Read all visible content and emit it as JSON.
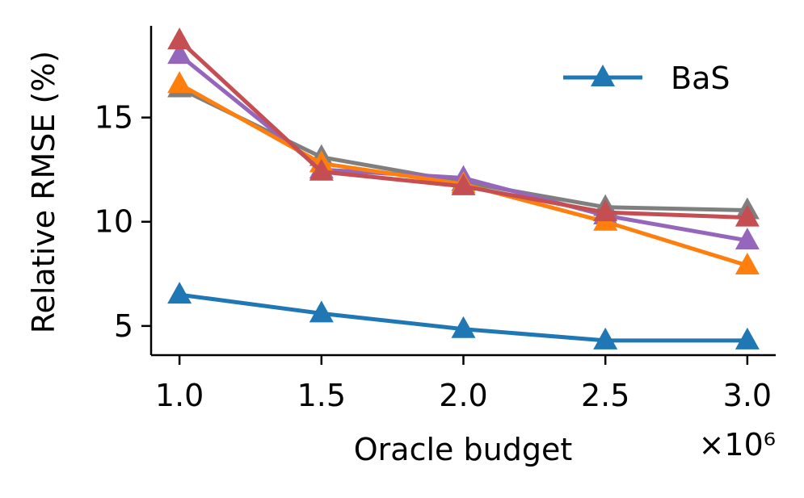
{
  "chart_data": {
    "type": "line",
    "title": "",
    "xlabel": "Oracle budget",
    "ylabel": "Relative RMSE (%)",
    "x_offset_label": "×10⁶",
    "x": [
      1.0,
      1.5,
      2.0,
      2.5,
      3.0
    ],
    "xticks": [
      1.0,
      1.5,
      2.0,
      2.5,
      3.0
    ],
    "xtick_labels": [
      "1.0",
      "1.5",
      "2.0",
      "2.5",
      "3.0"
    ],
    "yticks": [
      5,
      10,
      15
    ],
    "ytick_labels": [
      "5",
      "10",
      "15"
    ],
    "xlim": [
      0.9,
      3.1
    ],
    "ylim": [
      3.6,
      19.4
    ],
    "grid": false,
    "legend": {
      "position": "top-right",
      "entries": [
        "BaS"
      ]
    },
    "series": [
      {
        "name": "gray",
        "color": "#7f7f7f",
        "values": [
          16.4,
          13.1,
          11.9,
          10.7,
          10.55
        ]
      },
      {
        "name": "purple",
        "color": "#9467bd",
        "values": [
          18.0,
          12.5,
          12.1,
          10.3,
          9.1
        ]
      },
      {
        "name": "orange",
        "color": "#ff7f0e",
        "values": [
          16.6,
          12.8,
          11.8,
          10.0,
          7.9
        ]
      },
      {
        "name": "red",
        "color": "#c44e52",
        "values": [
          18.7,
          12.4,
          11.7,
          10.45,
          10.2
        ]
      },
      {
        "name": "BaS",
        "color": "#1f77b4",
        "values": [
          6.5,
          5.6,
          4.85,
          4.3,
          4.3
        ]
      }
    ]
  }
}
